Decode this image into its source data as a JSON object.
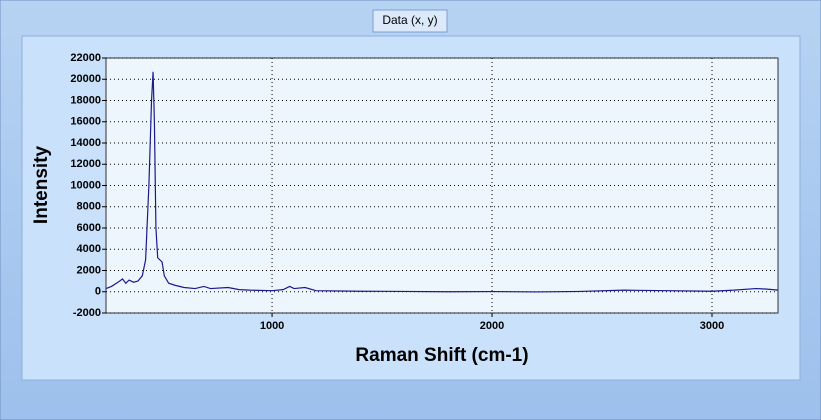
{
  "chart_data": {
    "type": "line",
    "x_label": "Raman Shift (cm-1)",
    "y_label": "Intensity",
    "x": [
      245,
      270,
      300,
      320,
      335,
      350,
      370,
      390,
      410,
      425,
      440,
      452,
      459,
      465,
      472,
      480,
      490,
      500,
      510,
      530,
      560,
      600,
      650,
      690,
      720,
      800,
      850,
      900,
      1000,
      1050,
      1080,
      1100,
      1150,
      1200,
      1400,
      1600,
      1800,
      2000,
      2200,
      2400,
      2600,
      2800,
      3000,
      3100,
      3200,
      3250,
      3300
    ],
    "series": [
      {
        "name": "Data (x, y)",
        "color": "#1a1a8c",
        "values": [
          300,
          500,
          900,
          1200,
          800,
          1100,
          900,
          1000,
          1500,
          3000,
          10000,
          18000,
          20700,
          16000,
          6000,
          3200,
          3000,
          2800,
          1500,
          800,
          600,
          400,
          300,
          500,
          300,
          400,
          200,
          150,
          100,
          200,
          500,
          300,
          400,
          100,
          50,
          30,
          0,
          20,
          -20,
          30,
          150,
          100,
          50,
          150,
          300,
          250,
          150
        ]
      }
    ],
    "xlim": [
      245,
      3300
    ],
    "ylim": [
      -2000,
      22000
    ],
    "xticks": [
      1000,
      2000,
      3000
    ],
    "yticks": [
      -2000,
      0,
      2000,
      4000,
      6000,
      8000,
      10000,
      12000,
      14000,
      16000,
      18000,
      20000,
      22000
    ],
    "grid": true
  }
}
